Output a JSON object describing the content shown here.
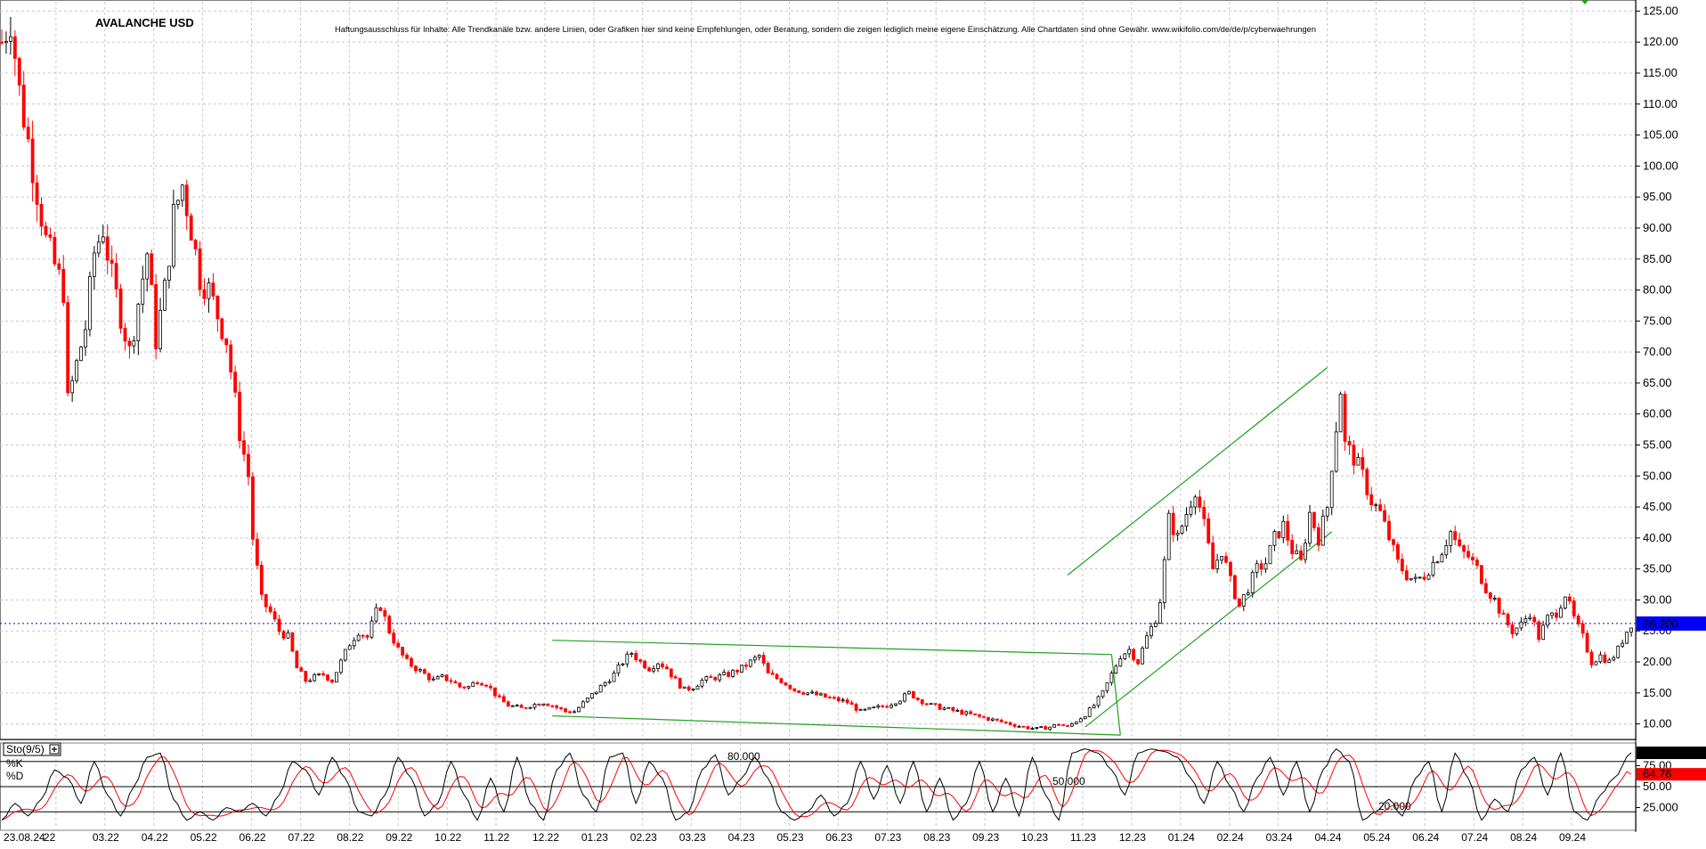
{
  "header": {
    "title": "AVALANCHE USD",
    "disclaimer": "Haftungsausschluss für Inhalte: Alle Trendkanäle bzw. andere Linien, oder Grafiken hier sind keine Empfehlungen, oder Beratung, sondern die zeigen lediglich meine eigene Einschätzung. Alle Chartdaten sind ohne Gewähr. www.wikifolio.com/de/de/p/cyberwaehrungen"
  },
  "chart_data": [
    {
      "type": "candlestick",
      "title": "AVALANCHE USD",
      "y_ticks": [
        "10.00",
        "15.00",
        "20.00",
        "25.00",
        "30.00",
        "35.00",
        "40.00",
        "45.00",
        "50.00",
        "55.00",
        "60.00",
        "65.00",
        "70.00",
        "75.00",
        "80.00",
        "85.00",
        "90.00",
        "95.00",
        "100.00",
        "105.00",
        "110.00",
        "115.00",
        "120.00",
        "125.00"
      ],
      "ylim": [
        7.5,
        126.5
      ],
      "x_labels": [
        "23.08.24",
        "22",
        "03.22",
        "04.22",
        "05.22",
        "06.22",
        "07.22",
        "08.22",
        "09.22",
        "10.22",
        "11.22",
        "12.22",
        "01.23",
        "02.23",
        "03.23",
        "04.23",
        "05.23",
        "06.23",
        "07.23",
        "08.23",
        "09.23",
        "10.23",
        "11.23",
        "12.23",
        "01.24",
        "02.24",
        "03.24",
        "04.24",
        "05.24",
        "06.24",
        "07.24",
        "08.24",
        "09.24"
      ],
      "last_price_label": "26.200",
      "last_price": 26.2,
      "colors": {
        "up": "#000000",
        "down": "#ff0000",
        "trendline": "#20a020",
        "price_line": "#0000ff",
        "price_tag": "#0000ff"
      },
      "close_path": [
        [
          0,
          120
        ],
        [
          2,
          124
        ],
        [
          4,
          112
        ],
        [
          6,
          104
        ],
        [
          8,
          96
        ],
        [
          10,
          88
        ],
        [
          12,
          84
        ],
        [
          14,
          80
        ],
        [
          15,
          62
        ],
        [
          17,
          68
        ],
        [
          19,
          74
        ],
        [
          21,
          86
        ],
        [
          23,
          90
        ],
        [
          25,
          82
        ],
        [
          27,
          76
        ],
        [
          29,
          70
        ],
        [
          31,
          78
        ],
        [
          33,
          86
        ],
        [
          35,
          72
        ],
        [
          37,
          80
        ],
        [
          39,
          92
        ],
        [
          41,
          97
        ],
        [
          43,
          90
        ],
        [
          45,
          82
        ],
        [
          47,
          80
        ],
        [
          49,
          76
        ],
        [
          51,
          72
        ],
        [
          53,
          62
        ],
        [
          54,
          57
        ],
        [
          56,
          50
        ],
        [
          57,
          40
        ],
        [
          59,
          30
        ],
        [
          61,
          28
        ],
        [
          63,
          25
        ],
        [
          65,
          24
        ],
        [
          67,
          19
        ],
        [
          69,
          17
        ],
        [
          71,
          17.5
        ],
        [
          73,
          18
        ],
        [
          75,
          17
        ],
        [
          77,
          20
        ],
        [
          79,
          23
        ],
        [
          81,
          25
        ],
        [
          83,
          24
        ],
        [
          85,
          28
        ],
        [
          86,
          29
        ],
        [
          88,
          25
        ],
        [
          90,
          22
        ],
        [
          92,
          20
        ],
        [
          94,
          19
        ],
        [
          96,
          18
        ],
        [
          98,
          17
        ],
        [
          100,
          17.5
        ],
        [
          102,
          17
        ],
        [
          104,
          16
        ],
        [
          106,
          16
        ],
        [
          108,
          17
        ],
        [
          110,
          16.5
        ],
        [
          113,
          14
        ],
        [
          115,
          13
        ],
        [
          118,
          12.5
        ],
        [
          120,
          13
        ],
        [
          123,
          13.5
        ],
        [
          125,
          13
        ],
        [
          128,
          12
        ],
        [
          130,
          12
        ],
        [
          133,
          14
        ],
        [
          136,
          16
        ],
        [
          139,
          18
        ],
        [
          141,
          20
        ],
        [
          143,
          21.5
        ],
        [
          145,
          20
        ],
        [
          147,
          19
        ],
        [
          149,
          20
        ],
        [
          151,
          19
        ],
        [
          153,
          17
        ],
        [
          155,
          15.5
        ],
        [
          157,
          16
        ],
        [
          159,
          17
        ],
        [
          162,
          17.5
        ],
        [
          165,
          18
        ],
        [
          168,
          19
        ],
        [
          170,
          20
        ],
        [
          172,
          21
        ],
        [
          174,
          18
        ],
        [
          177,
          17
        ],
        [
          180,
          15.5
        ],
        [
          183,
          15
        ],
        [
          186,
          14.5
        ],
        [
          189,
          14
        ],
        [
          192,
          13.5
        ],
        [
          195,
          12
        ],
        [
          198,
          12.5
        ],
        [
          201,
          13
        ],
        [
          204,
          14
        ],
        [
          206,
          15
        ],
        [
          208,
          14
        ],
        [
          211,
          13
        ],
        [
          214,
          12.5
        ],
        [
          217,
          12
        ],
        [
          220,
          11.5
        ],
        [
          223,
          11
        ],
        [
          226,
          10.5
        ],
        [
          229,
          10
        ],
        [
          232,
          9.5
        ],
        [
          235,
          9.2
        ],
        [
          238,
          9.5
        ],
        [
          240,
          10
        ],
        [
          242,
          9.5
        ],
        [
          244,
          10.5
        ],
        [
          246,
          11.5
        ],
        [
          248,
          13
        ],
        [
          250,
          15
        ],
        [
          252,
          18
        ],
        [
          254,
          21
        ],
        [
          256,
          22
        ],
        [
          258,
          20
        ],
        [
          260,
          24
        ],
        [
          262,
          27
        ],
        [
          263,
          30
        ],
        [
          264,
          36
        ],
        [
          265,
          43
        ],
        [
          267,
          40
        ],
        [
          269,
          44
        ],
        [
          271,
          48
        ],
        [
          273,
          42
        ],
        [
          275,
          35
        ],
        [
          277,
          38
        ],
        [
          279,
          33
        ],
        [
          281,
          29
        ],
        [
          283,
          32
        ],
        [
          285,
          35
        ],
        [
          287,
          36
        ],
        [
          289,
          40
        ],
        [
          291,
          42
        ],
        [
          293,
          38
        ],
        [
          295,
          36
        ],
        [
          297,
          44
        ],
        [
          299,
          40
        ],
        [
          301,
          45
        ],
        [
          302,
          52
        ],
        [
          303,
          58
        ],
        [
          304,
          64
        ],
        [
          305,
          55
        ],
        [
          307,
          53
        ],
        [
          309,
          50
        ],
        [
          311,
          46
        ],
        [
          313,
          44
        ],
        [
          315,
          40
        ],
        [
          317,
          36
        ],
        [
          319,
          34
        ],
        [
          321,
          33
        ],
        [
          323,
          34
        ],
        [
          325,
          36
        ],
        [
          327,
          38
        ],
        [
          329,
          41
        ],
        [
          331,
          38
        ],
        [
          333,
          37
        ],
        [
          335,
          35
        ],
        [
          337,
          32
        ],
        [
          339,
          30
        ],
        [
          341,
          27
        ],
        [
          343,
          25
        ],
        [
          345,
          26
        ],
        [
          347,
          28
        ],
        [
          349,
          24
        ],
        [
          351,
          27
        ],
        [
          353,
          28
        ],
        [
          355,
          31
        ],
        [
          357,
          27
        ],
        [
          359,
          24
        ],
        [
          361,
          20
        ],
        [
          363,
          21
        ],
        [
          365,
          20
        ],
        [
          367,
          22
        ],
        [
          369,
          25
        ],
        [
          370,
          26.2
        ]
      ],
      "trendlines": [
        {
          "name": "triangle-upper",
          "points": [
            [
              125,
              23.5
            ],
            [
              252,
              21.2
            ]
          ]
        },
        {
          "name": "triangle-lower",
          "points": [
            [
              125,
              11.3
            ],
            [
              254,
              8.2
            ]
          ]
        },
        {
          "name": "triangle-right",
          "points": [
            [
              252,
              21.2
            ],
            [
              254,
              8.2
            ]
          ]
        },
        {
          "name": "channel-upper",
          "points": [
            [
              242,
              34
            ],
            [
              301,
              67.5
            ]
          ]
        },
        {
          "name": "channel-lower",
          "points": [
            [
              246,
              9.5
            ],
            [
              302,
              41
            ]
          ]
        }
      ]
    },
    {
      "type": "line",
      "title": "Sto(9/5)",
      "series": [
        {
          "name": "%K",
          "color": "#000000",
          "last_value": "90.38"
        },
        {
          "name": "%D",
          "color": "#ff0000",
          "last_value": "64.76"
        }
      ],
      "y_ticks": [
        "25.000",
        "50.00",
        "75.00"
      ],
      "levels": [
        {
          "value": 80,
          "label": "80.000"
        },
        {
          "value": 50,
          "label": "50.000"
        },
        {
          "value": 20,
          "label": "20.000"
        }
      ],
      "ylim": [
        0,
        100
      ],
      "k_key": [
        [
          0,
          10
        ],
        [
          3,
          30
        ],
        [
          6,
          15
        ],
        [
          9,
          35
        ],
        [
          12,
          70
        ],
        [
          15,
          60
        ],
        [
          18,
          30
        ],
        [
          21,
          80
        ],
        [
          24,
          40
        ],
        [
          27,
          15
        ],
        [
          30,
          50
        ],
        [
          33,
          85
        ],
        [
          36,
          90
        ],
        [
          39,
          35
        ],
        [
          42,
          10
        ],
        [
          45,
          20
        ],
        [
          48,
          10
        ],
        [
          51,
          25
        ],
        [
          54,
          20
        ],
        [
          57,
          30
        ],
        [
          60,
          15
        ],
        [
          63,
          40
        ],
        [
          66,
          80
        ],
        [
          69,
          70
        ],
        [
          72,
          40
        ],
        [
          75,
          85
        ],
        [
          78,
          60
        ],
        [
          81,
          20
        ],
        [
          84,
          15
        ],
        [
          87,
          40
        ],
        [
          90,
          85
        ],
        [
          93,
          60
        ],
        [
          96,
          15
        ],
        [
          99,
          30
        ],
        [
          102,
          80
        ],
        [
          105,
          40
        ],
        [
          108,
          10
        ],
        [
          111,
          60
        ],
        [
          114,
          20
        ],
        [
          117,
          85
        ],
        [
          120,
          30
        ],
        [
          123,
          10
        ],
        [
          126,
          70
        ],
        [
          129,
          90
        ],
        [
          132,
          40
        ],
        [
          135,
          20
        ],
        [
          138,
          85
        ],
        [
          141,
          90
        ],
        [
          144,
          30
        ],
        [
          147,
          80
        ],
        [
          150,
          60
        ],
        [
          153,
          10
        ],
        [
          156,
          20
        ],
        [
          159,
          70
        ],
        [
          162,
          88
        ],
        [
          165,
          40
        ],
        [
          168,
          60
        ],
        [
          171,
          85
        ],
        [
          174,
          60
        ],
        [
          177,
          20
        ],
        [
          180,
          10
        ],
        [
          183,
          20
        ],
        [
          186,
          40
        ],
        [
          189,
          15
        ],
        [
          192,
          30
        ],
        [
          195,
          80
        ],
        [
          198,
          35
        ],
        [
          201,
          75
        ],
        [
          204,
          30
        ],
        [
          207,
          80
        ],
        [
          210,
          20
        ],
        [
          213,
          60
        ],
        [
          216,
          10
        ],
        [
          219,
          30
        ],
        [
          222,
          80
        ],
        [
          225,
          20
        ],
        [
          228,
          60
        ],
        [
          231,
          15
        ],
        [
          234,
          85
        ],
        [
          237,
          40
        ],
        [
          240,
          10
        ],
        [
          243,
          90
        ],
        [
          246,
          95
        ],
        [
          249,
          90
        ],
        [
          252,
          70
        ],
        [
          255,
          40
        ],
        [
          258,
          90
        ],
        [
          261,
          95
        ],
        [
          264,
          92
        ],
        [
          267,
          85
        ],
        [
          270,
          60
        ],
        [
          273,
          30
        ],
        [
          276,
          80
        ],
        [
          279,
          50
        ],
        [
          282,
          20
        ],
        [
          285,
          60
        ],
        [
          288,
          85
        ],
        [
          291,
          40
        ],
        [
          294,
          80
        ],
        [
          297,
          20
        ],
        [
          300,
          70
        ],
        [
          303,
          95
        ],
        [
          306,
          80
        ],
        [
          309,
          10
        ],
        [
          312,
          20
        ],
        [
          315,
          35
        ],
        [
          318,
          15
        ],
        [
          321,
          60
        ],
        [
          324,
          80
        ],
        [
          327,
          20
        ],
        [
          330,
          90
        ],
        [
          333,
          60
        ],
        [
          336,
          10
        ],
        [
          339,
          35
        ],
        [
          342,
          20
        ],
        [
          345,
          70
        ],
        [
          348,
          85
        ],
        [
          351,
          40
        ],
        [
          354,
          90
        ],
        [
          357,
          20
        ],
        [
          360,
          10
        ],
        [
          363,
          40
        ],
        [
          366,
          60
        ],
        [
          370,
          90.38
        ]
      ]
    }
  ]
}
